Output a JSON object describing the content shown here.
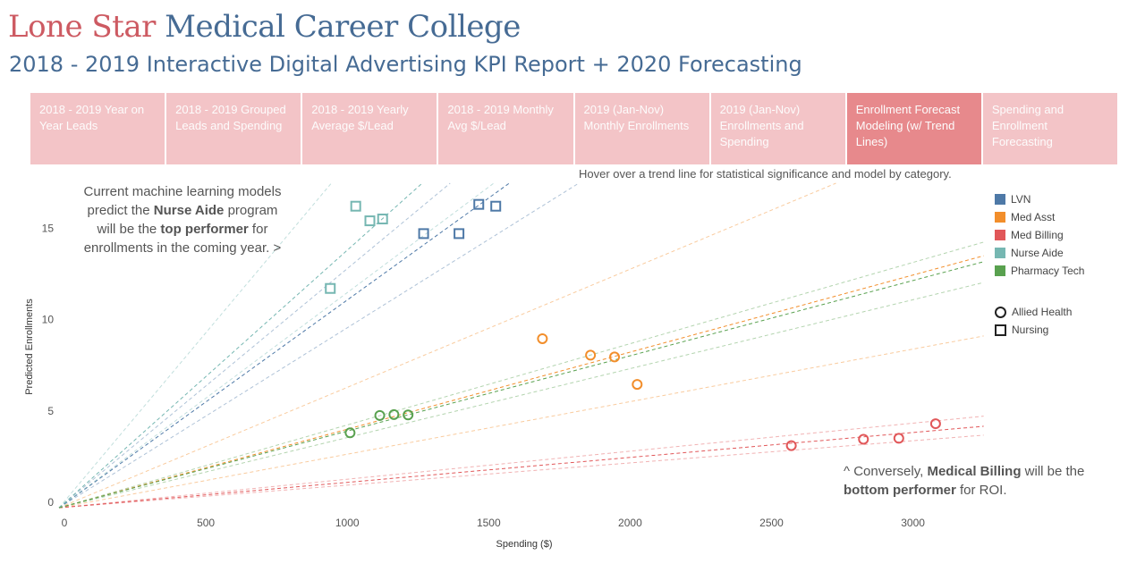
{
  "header": {
    "title_part1": "Lone Star",
    "title_part2": "Medical Career College",
    "subtitle": "2018 - 2019 Interactive Digital Advertising KPI Report + 2020 Forecasting"
  },
  "tabs": [
    {
      "label": "2018 - 2019     Year on Year Leads",
      "active": false
    },
    {
      "label": "2018 - 2019 Grouped Leads and Spending",
      "active": false
    },
    {
      "label": "2018 - 2019  Yearly Average $/Lead",
      "active": false
    },
    {
      "label": "2018 - 2019  Monthly Avg $/Lead",
      "active": false
    },
    {
      "label": "2019 (Jan-Nov) Monthly Enrollments",
      "active": false
    },
    {
      "label": "2019 (Jan-Nov) Enrollments and Spending",
      "active": false
    },
    {
      "label": "Enrollment Forecast Modeling (w/ Trend Lines)",
      "active": true
    },
    {
      "label": "Spending and Enrollment Forecasting",
      "active": false
    }
  ],
  "hover_note": "Hover over a trend line for statistical significance and model by category.",
  "annotations": {
    "left_pre": "Current machine learning models predict the ",
    "left_b1": "Nurse Aide",
    "left_mid": " program will be the ",
    "left_b2": "top performer",
    "left_post": " for enrollments in the coming year.  >",
    "right_pre": "^  Conversely, ",
    "right_b1": "Medical Billing",
    "right_mid": " will be the ",
    "right_b2": "bottom performer",
    "right_post": " for ROI."
  },
  "legend": {
    "colors": [
      {
        "label": "LVN",
        "color": "#4e79a7"
      },
      {
        "label": "Med Asst",
        "color": "#f28e2b"
      },
      {
        "label": "Med Billing",
        "color": "#e15759"
      },
      {
        "label": "Nurse Aide",
        "color": "#76b7b2"
      },
      {
        "label": "Pharmacy Tech",
        "color": "#59a14f"
      }
    ],
    "shapes": [
      {
        "label": "Allied Health",
        "shape": "circle"
      },
      {
        "label": "Nursing",
        "shape": "square"
      }
    ]
  },
  "chart_data": {
    "type": "scatter",
    "xlabel": "Spending ($)",
    "ylabel": "Predicted Enrollments",
    "xlim": [
      0,
      3250
    ],
    "ylim": [
      0,
      17
    ],
    "xticks": [
      0,
      500,
      1000,
      1500,
      2000,
      2500,
      3000
    ],
    "yticks": [
      0,
      5,
      10,
      15
    ],
    "grid": false,
    "legend_position": "right",
    "series": [
      {
        "name": "LVN",
        "color": "#4e79a7",
        "shape": "square",
        "points": [
          [
            1270,
            14.7
          ],
          [
            1395,
            14.7
          ],
          [
            1465,
            16.3
          ],
          [
            1525,
            16.2
          ]
        ],
        "trend_slope": 0.0111,
        "trend_upper": 0.0128,
        "trend_lower": 0.0096
      },
      {
        "name": "Med Asst",
        "color": "#f28e2b",
        "shape": "circle",
        "points": [
          [
            1690,
            8.95
          ],
          [
            1860,
            8.05
          ],
          [
            1945,
            7.95
          ],
          [
            2025,
            6.45
          ]
        ],
        "trend_slope": 0.00415,
        "trend_upper": 0.0064,
        "trend_lower": 0.0028
      },
      {
        "name": "Med Billing",
        "color": "#e15759",
        "shape": "circle",
        "points": [
          [
            2570,
            3.1
          ],
          [
            2825,
            3.45
          ],
          [
            2950,
            3.5
          ],
          [
            3080,
            4.3
          ]
        ],
        "trend_slope": 0.00128,
        "trend_upper": 0.00145,
        "trend_lower": 0.00113
      },
      {
        "name": "Nurse Aide",
        "color": "#76b7b2",
        "shape": "square",
        "points": [
          [
            940,
            11.7
          ],
          [
            1030,
            16.2
          ],
          [
            1080,
            15.4
          ],
          [
            1125,
            15.5
          ]
        ],
        "trend_slope": 0.0138,
        "trend_upper": 0.0185,
        "trend_lower": 0.0115
      },
      {
        "name": "Pharmacy Tech",
        "color": "#59a14f",
        "shape": "circle",
        "points": [
          [
            1010,
            3.8
          ],
          [
            1115,
            4.75
          ],
          [
            1165,
            4.8
          ],
          [
            1215,
            4.78
          ]
        ],
        "trend_slope": 0.00405,
        "trend_upper": 0.00438,
        "trend_lower": 0.0037
      }
    ]
  }
}
